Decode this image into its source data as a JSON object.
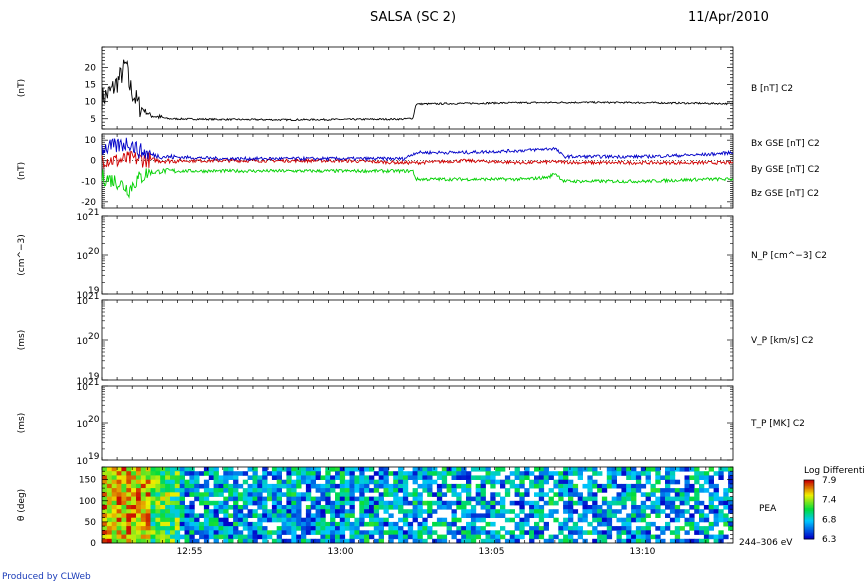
{
  "header": {
    "title": "SALSA (SC 2)",
    "date": "11/Apr/2010"
  },
  "footer": {
    "credit": "Produced by CLWeb"
  },
  "colors": {
    "bx": "#d00000",
    "by": "#00d000",
    "bz": "#0000c8",
    "b": "#000000"
  },
  "chart_data": [
    {
      "type": "line",
      "panel": "B",
      "ylabel": "(nT)",
      "ylim": [
        2,
        26
      ],
      "yticks": [
        5,
        10,
        15,
        20
      ],
      "series": [
        {
          "name": "B [nT] C2",
          "color": "#000000",
          "points": [
            [
              0,
              11
            ],
            [
              0.3,
              13
            ],
            [
              0.6,
              17
            ],
            [
              0.8,
              21
            ],
            [
              0.9,
              15
            ],
            [
              1.2,
              9
            ],
            [
              1.6,
              6
            ],
            [
              2.2,
              5
            ],
            [
              4,
              4.8
            ],
            [
              6,
              4.7
            ],
            [
              8,
              4.8
            ],
            [
              10,
              4.9
            ],
            [
              10.3,
              5.2
            ],
            [
              10.4,
              9.3
            ],
            [
              12,
              9.5
            ],
            [
              14,
              9.7
            ],
            [
              16,
              9.8
            ],
            [
              18,
              9.7
            ],
            [
              20,
              9.5
            ],
            [
              20.9,
              9.4
            ]
          ]
        }
      ]
    },
    {
      "type": "line",
      "panel": "B components",
      "ylabel": "(nT)",
      "ylim": [
        -23,
        13
      ],
      "yticks": [
        -20,
        -10,
        0,
        10
      ],
      "series": [
        {
          "name": "Bx GSE [nT] C2",
          "color": "#d00000",
          "points": [
            [
              0,
              1
            ],
            [
              0.5,
              0
            ],
            [
              1,
              1
            ],
            [
              1.5,
              0.5
            ],
            [
              2,
              0
            ],
            [
              4,
              0
            ],
            [
              6,
              0
            ],
            [
              8,
              0
            ],
            [
              10,
              -1
            ],
            [
              10.4,
              -1
            ],
            [
              12,
              0
            ],
            [
              14,
              -1
            ],
            [
              15,
              -0.5
            ],
            [
              16,
              -1
            ],
            [
              18,
              -1
            ],
            [
              20,
              -1
            ],
            [
              20.9,
              -1
            ]
          ]
        },
        {
          "name": "By GSE [nT] C2",
          "color": "#00d000",
          "points": [
            [
              0,
              -8
            ],
            [
              0.5,
              -10
            ],
            [
              0.9,
              -14
            ],
            [
              1.1,
              -10
            ],
            [
              1.5,
              -6
            ],
            [
              2,
              -5
            ],
            [
              4,
              -5
            ],
            [
              6,
              -5
            ],
            [
              8,
              -5
            ],
            [
              10,
              -5
            ],
            [
              10.3,
              -5
            ],
            [
              10.4,
              -9
            ],
            [
              12,
              -9
            ],
            [
              14,
              -9
            ],
            [
              14.8,
              -8
            ],
            [
              15,
              -6
            ],
            [
              15.3,
              -10
            ],
            [
              16,
              -10
            ],
            [
              18,
              -10
            ],
            [
              20,
              -9
            ],
            [
              20.9,
              -9
            ]
          ]
        },
        {
          "name": "Bz GSE [nT] C2",
          "color": "#0000c8",
          "points": [
            [
              0,
              6
            ],
            [
              0.5,
              7
            ],
            [
              0.9,
              9
            ],
            [
              1.2,
              5
            ],
            [
              1.6,
              3
            ],
            [
              2,
              2
            ],
            [
              4,
              1
            ],
            [
              6,
              1
            ],
            [
              8,
              1
            ],
            [
              10,
              1
            ],
            [
              10.4,
              4
            ],
            [
              12,
              4
            ],
            [
              14,
              5
            ],
            [
              15,
              6
            ],
            [
              15.3,
              2
            ],
            [
              16,
              2
            ],
            [
              18,
              2
            ],
            [
              20,
              3
            ],
            [
              20.9,
              4
            ]
          ]
        }
      ]
    },
    {
      "type": "line",
      "panel": "N_P",
      "ylabel": "(cm^−3)",
      "ytick_labels": [
        "10",
        "10",
        "10"
      ],
      "ytick_exponents": [
        "21",
        "20",
        "19"
      ],
      "series_label": "N_P [cm^−3] C2",
      "series": []
    },
    {
      "type": "line",
      "panel": "V_P",
      "ylabel": "(ms)",
      "ytick_labels": [
        "10",
        "10",
        "10"
      ],
      "ytick_exponents": [
        "21",
        "20",
        "19"
      ],
      "series_label": "V_P [km/s] C2",
      "series": []
    },
    {
      "type": "line",
      "panel": "T_P",
      "ylabel": "(ms)",
      "ytick_labels": [
        "10",
        "10",
        "10"
      ],
      "ytick_exponents": [
        "21",
        "20",
        "19"
      ],
      "series_label": "T_P [MK] C2",
      "series": []
    },
    {
      "type": "heatmap",
      "panel": "PEA",
      "ylabel": "θ (deg)",
      "ylim": [
        0,
        180
      ],
      "yticks": [
        0,
        50,
        100,
        150
      ],
      "label_right": "PEA",
      "energy_label": "244–306 eV",
      "colorbar": {
        "title": "Log Differenti",
        "min": 6.3,
        "max": 7.9,
        "tick_labels": [
          "7.9",
          "7.4",
          "6.8",
          "6.3"
        ]
      }
    }
  ],
  "x_axis": {
    "range_minutes": [
      0,
      20.9
    ],
    "ticks": [
      {
        "t": 2.9,
        "label": "12:55"
      },
      {
        "t": 7.9,
        "label": "13:00"
      },
      {
        "t": 12.9,
        "label": "13:05"
      },
      {
        "t": 17.9,
        "label": "13:10"
      }
    ]
  }
}
